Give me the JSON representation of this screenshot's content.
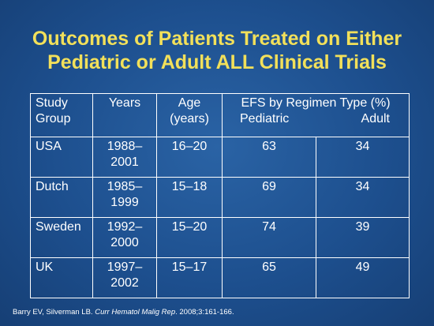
{
  "title": {
    "line1": "Outcomes of Patients Treated on Either",
    "line2": "Pediatric or Adult ALL Clinical Trials"
  },
  "table": {
    "headers": {
      "study_group": "Study Group",
      "years": "Years",
      "age": "Age (years)",
      "efs": "EFS by Regimen Type (%)",
      "pediatric": "Pediatric",
      "adult": "Adult"
    },
    "rows": [
      {
        "group": "USA",
        "years_a": "1988–",
        "years_b": "2001",
        "age": "16–20",
        "pediatric": "63",
        "adult": "34"
      },
      {
        "group": "Dutch",
        "years_a": "1985–",
        "years_b": "1999",
        "age": "15–18",
        "pediatric": "69",
        "adult": "34"
      },
      {
        "group": "Sweden",
        "years_a": "1992–",
        "years_b": "2000",
        "age": "15–20",
        "pediatric": "74",
        "adult": "39"
      },
      {
        "group": "UK",
        "years_a": "1997–",
        "years_b": "2002",
        "age": "15–17",
        "pediatric": "65",
        "adult": "49"
      }
    ]
  },
  "citation": {
    "authors": "Barry EV, Silverman LB.",
    "journal": "Curr Hematol Malig Rep",
    "details": ". 2008;3:161-166."
  },
  "colors": {
    "background": "#1d4f8e",
    "title": "#f2e05a",
    "text": "#ffffff"
  }
}
